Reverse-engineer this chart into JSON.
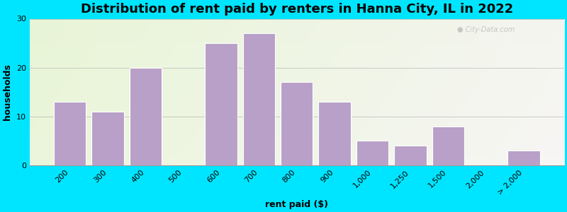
{
  "title": "Distribution of rent paid by renters in Hanna City, IL in 2022",
  "xlabel": "rent paid ($)",
  "ylabel": "households",
  "categories": [
    "200",
    "300",
    "400",
    "500",
    "600",
    "700",
    "800",
    "900",
    "1,000",
    "1,250",
    "1,500",
    "2,000",
    "> 2,000"
  ],
  "values": [
    13,
    11,
    20,
    0,
    25,
    27,
    17,
    13,
    5,
    4,
    8,
    0,
    3
  ],
  "bar_color": "#b8a0c8",
  "bar_edge_color": "#ffffff",
  "bg_outer": "#00e5ff",
  "ylim": [
    0,
    30
  ],
  "yticks": [
    0,
    10,
    20,
    30
  ],
  "title_fontsize": 13,
  "axis_label_fontsize": 9,
  "tick_fontsize": 8
}
